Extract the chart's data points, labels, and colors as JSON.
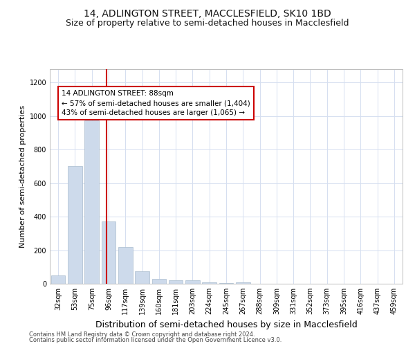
{
  "title": "14, ADLINGTON STREET, MACCLESFIELD, SK10 1BD",
  "subtitle": "Size of property relative to semi-detached houses in Macclesfield",
  "xlabel": "Distribution of semi-detached houses by size in Macclesfield",
  "ylabel": "Number of semi-detached properties",
  "categories": [
    "32sqm",
    "53sqm",
    "75sqm",
    "96sqm",
    "117sqm",
    "139sqm",
    "160sqm",
    "181sqm",
    "203sqm",
    "224sqm",
    "245sqm",
    "267sqm",
    "288sqm",
    "309sqm",
    "331sqm",
    "352sqm",
    "373sqm",
    "395sqm",
    "416sqm",
    "437sqm",
    "459sqm"
  ],
  "values": [
    50,
    700,
    975,
    370,
    220,
    75,
    30,
    20,
    20,
    10,
    5,
    10,
    0,
    0,
    0,
    0,
    0,
    0,
    0,
    0,
    0
  ],
  "bar_color": "#cddaeb",
  "bar_edge_color": "#aabcce",
  "vline_color": "#cc0000",
  "annotation_text": "14 ADLINGTON STREET: 88sqm\n← 57% of semi-detached houses are smaller (1,404)\n43% of semi-detached houses are larger (1,065) →",
  "annotation_box_color": "white",
  "annotation_box_edge_color": "#cc0000",
  "ylim": [
    0,
    1280
  ],
  "yticks": [
    0,
    200,
    400,
    600,
    800,
    1000,
    1200
  ],
  "title_fontsize": 10,
  "subtitle_fontsize": 9,
  "ylabel_fontsize": 8,
  "xlabel_fontsize": 9,
  "tick_fontsize": 7,
  "annotation_fontsize": 7.5,
  "bg_color": "#ffffff",
  "grid_color": "#d5dff0",
  "footer_line1": "Contains HM Land Registry data © Crown copyright and database right 2024.",
  "footer_line2": "Contains public sector information licensed under the Open Government Licence v3.0.",
  "vline_pos": 2.87
}
